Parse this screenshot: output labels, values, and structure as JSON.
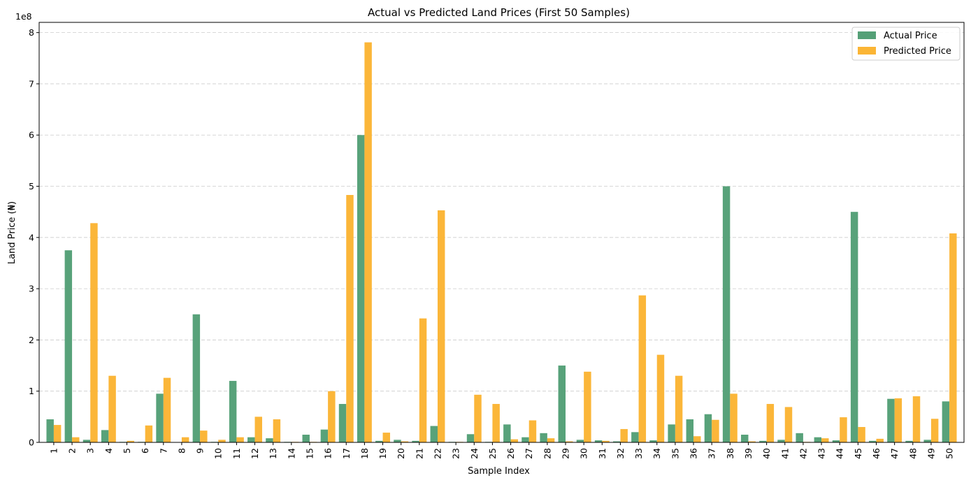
{
  "chart_data": {
    "type": "bar",
    "title": "Actual vs Predicted Land Prices (First 50 Samples)",
    "xlabel": "Sample Index",
    "ylabel": "Land Price (₦)",
    "y_offset_label": "1e8",
    "y_tick_values": [
      0,
      1,
      2,
      3,
      4,
      5,
      6,
      7,
      8
    ],
    "ylim": [
      0,
      8.2
    ],
    "y_unit_multiplier": 100000000,
    "grid": "y-dashed",
    "legend_position": "top-right",
    "categories": [
      "1",
      "2",
      "3",
      "4",
      "5",
      "6",
      "7",
      "8",
      "9",
      "10",
      "11",
      "12",
      "13",
      "14",
      "15",
      "16",
      "17",
      "18",
      "19",
      "20",
      "21",
      "22",
      "23",
      "24",
      "25",
      "26",
      "27",
      "28",
      "29",
      "30",
      "31",
      "32",
      "33",
      "34",
      "35",
      "36",
      "37",
      "38",
      "39",
      "40",
      "41",
      "42",
      "43",
      "44",
      "45",
      "46",
      "47",
      "48",
      "49",
      "50"
    ],
    "series": [
      {
        "name": "Actual Price",
        "color": "#55a077",
        "values": [
          0.45,
          3.75,
          0.05,
          0.24,
          0.01,
          0.01,
          0.95,
          0.0,
          2.5,
          0.01,
          1.2,
          0.1,
          0.08,
          0.01,
          0.15,
          0.25,
          0.75,
          6.0,
          0.03,
          0.05,
          0.03,
          0.32,
          0.01,
          0.16,
          0.01,
          0.35,
          0.1,
          0.18,
          1.5,
          0.05,
          0.04,
          0.02,
          0.2,
          0.04,
          0.35,
          0.45,
          0.55,
          5.0,
          0.15,
          0.03,
          0.05,
          0.18,
          0.1,
          0.04,
          4.5,
          0.03,
          0.85,
          0.03,
          0.05,
          0.8
        ]
      },
      {
        "name": "Predicted Price",
        "color": "#fbb535",
        "values": [
          0.34,
          0.1,
          4.28,
          1.3,
          0.03,
          0.33,
          1.26,
          0.1,
          0.23,
          0.05,
          0.1,
          0.5,
          0.45,
          0.01,
          0.01,
          1.0,
          4.83,
          7.81,
          0.19,
          0.02,
          2.42,
          4.53,
          0.01,
          0.93,
          0.75,
          0.06,
          0.43,
          0.08,
          0.02,
          1.38,
          0.03,
          0.26,
          2.87,
          1.71,
          1.3,
          0.12,
          0.44,
          0.95,
          0.02,
          0.75,
          0.69,
          0.01,
          0.08,
          0.49,
          0.3,
          0.07,
          0.86,
          0.9,
          0.46,
          4.08
        ]
      }
    ]
  }
}
